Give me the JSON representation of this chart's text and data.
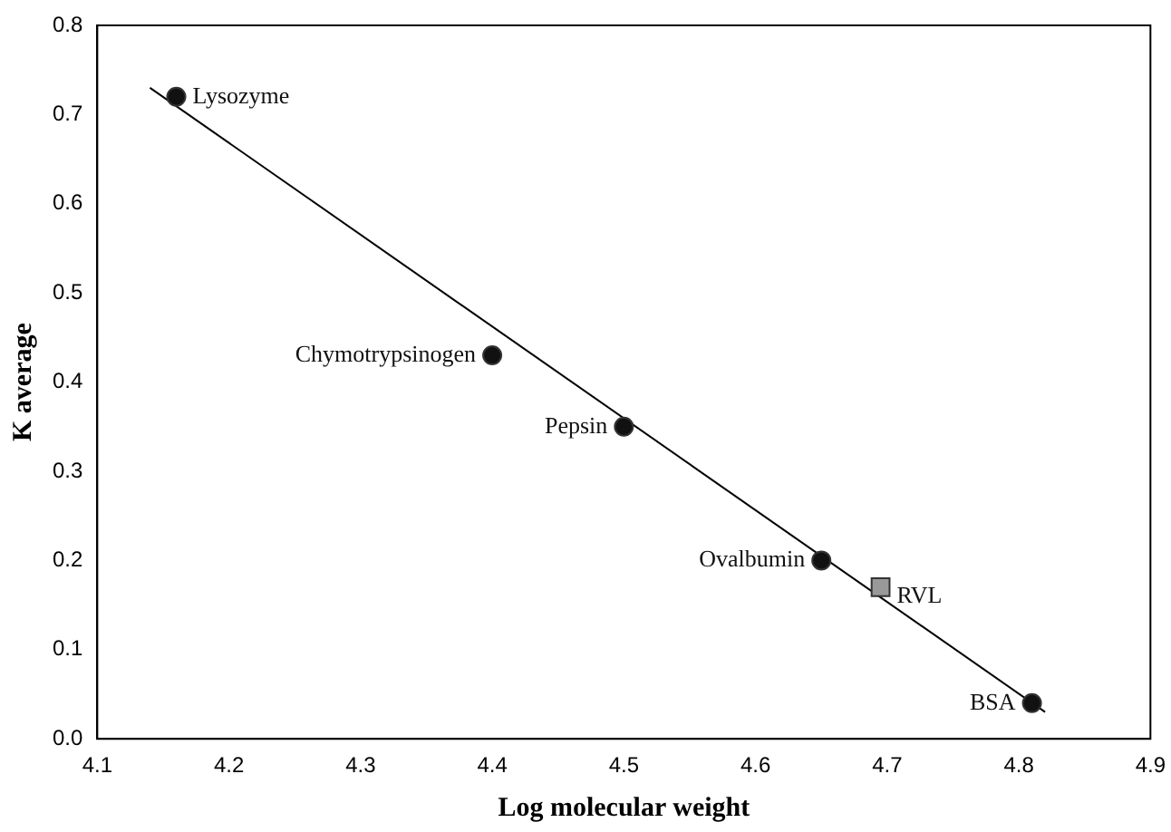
{
  "chart_data": {
    "type": "scatter",
    "xlabel": "Log molecular weight",
    "ylabel": "K average",
    "xlim": [
      4.1,
      4.9
    ],
    "xticks": [
      4.1,
      4.2,
      4.3,
      4.4,
      4.5,
      4.6,
      4.7,
      4.8,
      4.9
    ],
    "ylim": [
      0,
      0.8
    ],
    "yticks": [
      {
        "value": 0,
        "label": "0.0"
      },
      {
        "value": 0.1,
        "label": "0.1"
      },
      {
        "value": 0.2,
        "label": "0.2"
      },
      {
        "value": 0.3,
        "label": "0.3"
      },
      {
        "value": 0.4,
        "label": "0.4"
      },
      {
        "value": 0.5,
        "label": "0.5"
      },
      {
        "value": 0.6,
        "label": "0.6"
      },
      {
        "value": 0.7,
        "label": "0.7"
      },
      {
        "value": 0.8,
        "label": "0.8"
      }
    ],
    "grid": false,
    "legend": false,
    "series": [
      {
        "color": "#111111",
        "marker": "circle",
        "x": [
          4.16,
          4.4,
          4.5,
          4.65,
          4.81
        ],
        "values": [
          0.72,
          0.43,
          0.35,
          0.2,
          0.04
        ]
      },
      {
        "color": "#999999",
        "marker": "square",
        "x": [
          4.695
        ],
        "values": [
          0.17
        ]
      },
      {
        "type": "line",
        "color": "#000000",
        "marker": "none",
        "x": [
          4.14,
          4.82
        ],
        "values": [
          0.73,
          0.03
        ]
      }
    ],
    "annotations": [
      {
        "text": "Lysozyme",
        "x": 4.16,
        "y": 0.72
      },
      {
        "text": "Chymotrypsinogen",
        "x": 4.4,
        "y": 0.43
      },
      {
        "text": "Pepsin",
        "x": 4.5,
        "y": 0.35
      },
      {
        "text": "Ovalbumin",
        "x": 4.65,
        "y": 0.2
      },
      {
        "text": "RVL",
        "x": 4.695,
        "y": 0.17
      },
      {
        "text": "BSA",
        "x": 4.81,
        "y": 0.04
      }
    ]
  }
}
